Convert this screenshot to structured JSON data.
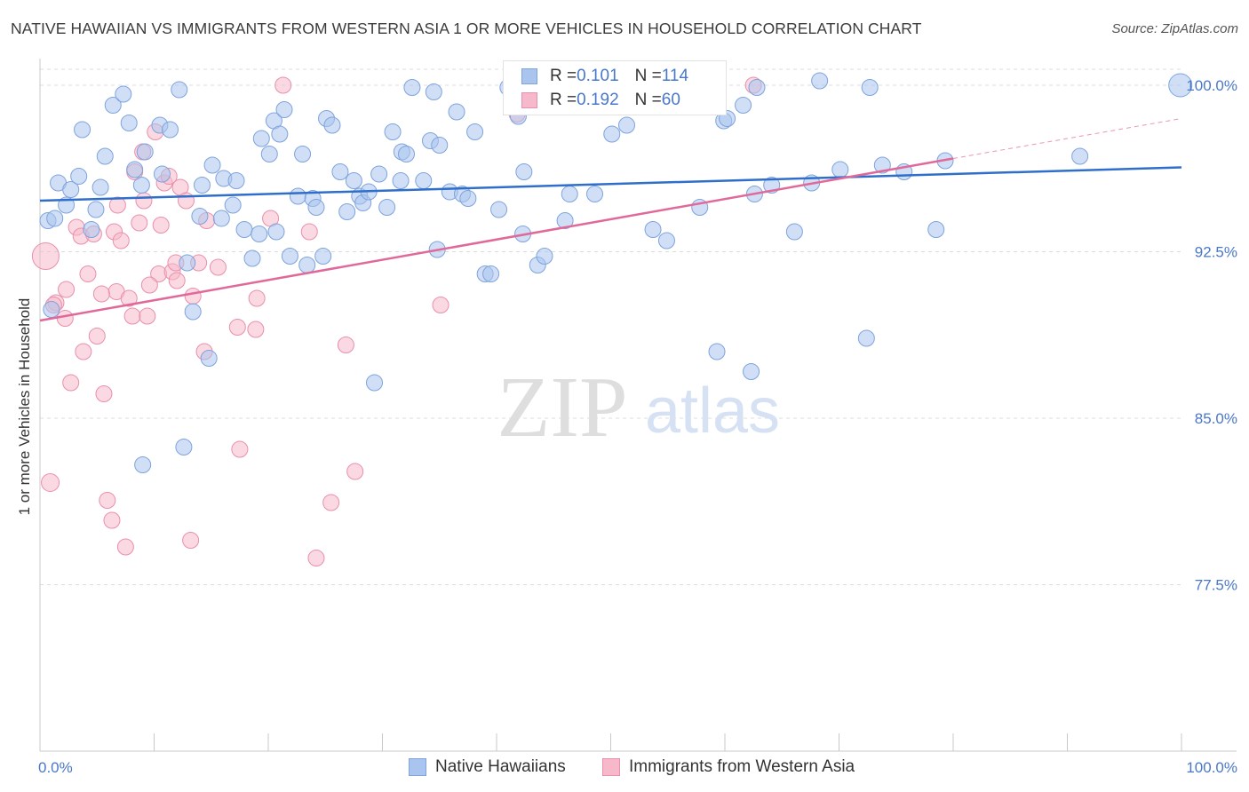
{
  "title": "NATIVE HAWAIIAN VS IMMIGRANTS FROM WESTERN ASIA 1 OR MORE VEHICLES IN HOUSEHOLD CORRELATION CHART",
  "source": "Source: ZipAtlas.com",
  "watermark": {
    "zip": "ZIP",
    "atlas": "atlas"
  },
  "legend_box": {
    "rows": [
      {
        "r_label": "R = ",
        "r_value": "0.101",
        "n_label": "N = ",
        "n_value": "114"
      },
      {
        "r_label": "R = ",
        "r_value": "0.192",
        "n_label": "N = ",
        "n_value": "60"
      }
    ]
  },
  "bottom_legend": {
    "series1": "Native Hawaiians",
    "series2": "Immigrants from Western Asia"
  },
  "colors": {
    "blue_fill": "#a9c4ee",
    "blue_stroke": "#7ea3dd",
    "blue_line": "#2f6fcb",
    "pink_fill": "#f6b9cb",
    "pink_stroke": "#ea8fab",
    "pink_line": "#e0699a",
    "tick_label": "#4a78c9",
    "grid": "#dcdcdc"
  },
  "chart_data": {
    "type": "scatter",
    "title": "NATIVE HAWAIIAN VS IMMIGRANTS FROM WESTERN ASIA 1 OR MORE VEHICLES IN HOUSEHOLD CORRELATION CHART",
    "xlabel": "",
    "ylabel": "1 or more Vehicles in Household",
    "xlim": [
      0,
      100
    ],
    "ylim": [
      70,
      101.2
    ],
    "x_tick_labels": [
      "0.0%",
      "100.0%"
    ],
    "y_ticks": [
      100.0,
      92.5,
      85.0,
      77.5
    ],
    "y_tick_labels": [
      "100.0%",
      "92.5%",
      "85.0%",
      "77.5%"
    ],
    "grid": true,
    "legend": "bottom-center",
    "series": [
      {
        "name": "Native Hawaiians",
        "r": 0.101,
        "n": 114,
        "trend": {
          "x": [
            0,
            100
          ],
          "y": [
            94.8,
            96.3
          ]
        },
        "points": [
          [
            0.7,
            93.9
          ],
          [
            1.3,
            94.0
          ],
          [
            1.6,
            95.6
          ],
          [
            2.3,
            94.6
          ],
          [
            2.7,
            95.3
          ],
          [
            3.4,
            95.9
          ],
          [
            3.7,
            98.0
          ],
          [
            4.5,
            93.5
          ],
          [
            4.9,
            94.4
          ],
          [
            5.3,
            95.4
          ],
          [
            5.7,
            96.8
          ],
          [
            6.4,
            99.1
          ],
          [
            7.3,
            99.6
          ],
          [
            7.8,
            98.3
          ],
          [
            8.3,
            96.2
          ],
          [
            8.9,
            95.5
          ],
          [
            9.2,
            97.0
          ],
          [
            10.5,
            98.2
          ],
          [
            10.7,
            96.0
          ],
          [
            11.4,
            98.0
          ],
          [
            12.2,
            99.8
          ],
          [
            12.9,
            92.0
          ],
          [
            13.4,
            89.8
          ],
          [
            14.0,
            94.1
          ],
          [
            14.2,
            95.5
          ],
          [
            14.8,
            87.7
          ],
          [
            15.1,
            96.4
          ],
          [
            15.9,
            94.0
          ],
          [
            16.1,
            95.8
          ],
          [
            16.9,
            94.6
          ],
          [
            17.2,
            95.7
          ],
          [
            17.9,
            93.5
          ],
          [
            18.6,
            92.2
          ],
          [
            19.2,
            93.3
          ],
          [
            19.4,
            97.6
          ],
          [
            20.1,
            96.9
          ],
          [
            20.5,
            98.4
          ],
          [
            21.0,
            97.8
          ],
          [
            21.4,
            98.9
          ],
          [
            21.9,
            92.3
          ],
          [
            22.6,
            95.0
          ],
          [
            23.0,
            96.9
          ],
          [
            23.4,
            91.9
          ],
          [
            23.9,
            94.9
          ],
          [
            24.2,
            94.5
          ],
          [
            24.8,
            92.3
          ],
          [
            25.1,
            98.5
          ],
          [
            25.6,
            98.2
          ],
          [
            26.3,
            96.1
          ],
          [
            26.9,
            94.3
          ],
          [
            27.5,
            95.7
          ],
          [
            28.0,
            95.0
          ],
          [
            28.3,
            94.7
          ],
          [
            28.8,
            95.2
          ],
          [
            29.3,
            86.6
          ],
          [
            29.7,
            96.0
          ],
          [
            30.4,
            94.5
          ],
          [
            30.9,
            97.9
          ],
          [
            31.6,
            95.7
          ],
          [
            31.7,
            97.0
          ],
          [
            32.1,
            96.9
          ],
          [
            32.6,
            99.9
          ],
          [
            33.6,
            95.7
          ],
          [
            34.2,
            97.5
          ],
          [
            34.8,
            92.6
          ],
          [
            35.0,
            97.3
          ],
          [
            35.9,
            95.2
          ],
          [
            36.5,
            98.8
          ],
          [
            37.0,
            95.1
          ],
          [
            37.5,
            94.9
          ],
          [
            38.1,
            97.9
          ],
          [
            39.0,
            91.5
          ],
          [
            39.5,
            91.5
          ],
          [
            40.2,
            94.4
          ],
          [
            41.0,
            99.9
          ],
          [
            41.9,
            98.6
          ],
          [
            42.3,
            93.3
          ],
          [
            42.4,
            96.1
          ],
          [
            43.6,
            91.9
          ],
          [
            44.2,
            92.3
          ],
          [
            46.0,
            93.9
          ],
          [
            46.4,
            95.1
          ],
          [
            48.6,
            95.1
          ],
          [
            50.1,
            97.8
          ],
          [
            51.4,
            98.2
          ],
          [
            53.7,
            93.5
          ],
          [
            54.9,
            93.0
          ],
          [
            57.8,
            94.5
          ],
          [
            59.3,
            88.0
          ],
          [
            59.9,
            98.4
          ],
          [
            60.2,
            98.5
          ],
          [
            61.6,
            99.1
          ],
          [
            62.3,
            87.1
          ],
          [
            62.6,
            95.1
          ],
          [
            64.1,
            95.5
          ],
          [
            66.1,
            93.4
          ],
          [
            67.6,
            95.6
          ],
          [
            70.1,
            96.2
          ],
          [
            72.4,
            88.6
          ],
          [
            73.8,
            96.4
          ],
          [
            75.7,
            96.1
          ],
          [
            78.5,
            93.5
          ],
          [
            79.3,
            96.6
          ],
          [
            91.1,
            96.8
          ],
          [
            99.9,
            100.0
          ],
          [
            1.0,
            89.9
          ],
          [
            9.0,
            82.9
          ],
          [
            12.6,
            83.7
          ],
          [
            62.8,
            99.9
          ],
          [
            68.3,
            100.2
          ],
          [
            72.7,
            99.9
          ],
          [
            34.5,
            99.7
          ],
          [
            44.0,
            99.9
          ],
          [
            20.7,
            93.4
          ]
        ]
      },
      {
        "name": "Immigrants from Western Asia",
        "r": 0.192,
        "n": 60,
        "trend": {
          "x": [
            0,
            80
          ],
          "y": [
            89.4,
            96.7
          ]
        },
        "trend_dashed": {
          "x": [
            80,
            100
          ],
          "y": [
            96.7,
            98.5
          ]
        },
        "points": [
          [
            0.5,
            92.3
          ],
          [
            0.9,
            82.1
          ],
          [
            1.4,
            90.2
          ],
          [
            2.2,
            89.5
          ],
          [
            2.3,
            90.8
          ],
          [
            2.7,
            86.6
          ],
          [
            3.2,
            93.6
          ],
          [
            3.6,
            93.2
          ],
          [
            3.8,
            88.0
          ],
          [
            4.2,
            91.5
          ],
          [
            4.7,
            93.3
          ],
          [
            5.0,
            88.7
          ],
          [
            5.6,
            86.1
          ],
          [
            5.9,
            81.3
          ],
          [
            6.3,
            80.4
          ],
          [
            6.5,
            93.4
          ],
          [
            6.7,
            90.7
          ],
          [
            6.8,
            94.6
          ],
          [
            7.1,
            93.0
          ],
          [
            7.5,
            79.2
          ],
          [
            7.8,
            90.4
          ],
          [
            8.1,
            89.6
          ],
          [
            8.3,
            96.1
          ],
          [
            8.7,
            93.8
          ],
          [
            9.0,
            97.0
          ],
          [
            9.1,
            94.8
          ],
          [
            9.4,
            89.6
          ],
          [
            10.1,
            97.9
          ],
          [
            10.4,
            91.5
          ],
          [
            10.6,
            93.7
          ],
          [
            10.9,
            95.6
          ],
          [
            11.3,
            95.9
          ],
          [
            11.6,
            91.6
          ],
          [
            12.0,
            91.2
          ],
          [
            12.3,
            95.4
          ],
          [
            12.8,
            94.8
          ],
          [
            13.2,
            79.5
          ],
          [
            13.4,
            90.5
          ],
          [
            13.9,
            92.0
          ],
          [
            14.4,
            88.0
          ],
          [
            14.6,
            93.9
          ],
          [
            15.6,
            91.8
          ],
          [
            17.3,
            89.1
          ],
          [
            17.5,
            83.6
          ],
          [
            18.9,
            89.0
          ],
          [
            19.0,
            90.4
          ],
          [
            20.2,
            94.0
          ],
          [
            21.3,
            100.0
          ],
          [
            23.6,
            93.4
          ],
          [
            24.2,
            78.7
          ],
          [
            25.5,
            81.2
          ],
          [
            26.8,
            88.3
          ],
          [
            27.6,
            82.6
          ],
          [
            35.1,
            90.1
          ],
          [
            41.8,
            98.7
          ],
          [
            62.5,
            100.0
          ],
          [
            1.2,
            90.1
          ],
          [
            5.4,
            90.6
          ],
          [
            11.9,
            92.0
          ],
          [
            9.6,
            91.0
          ]
        ]
      }
    ]
  }
}
